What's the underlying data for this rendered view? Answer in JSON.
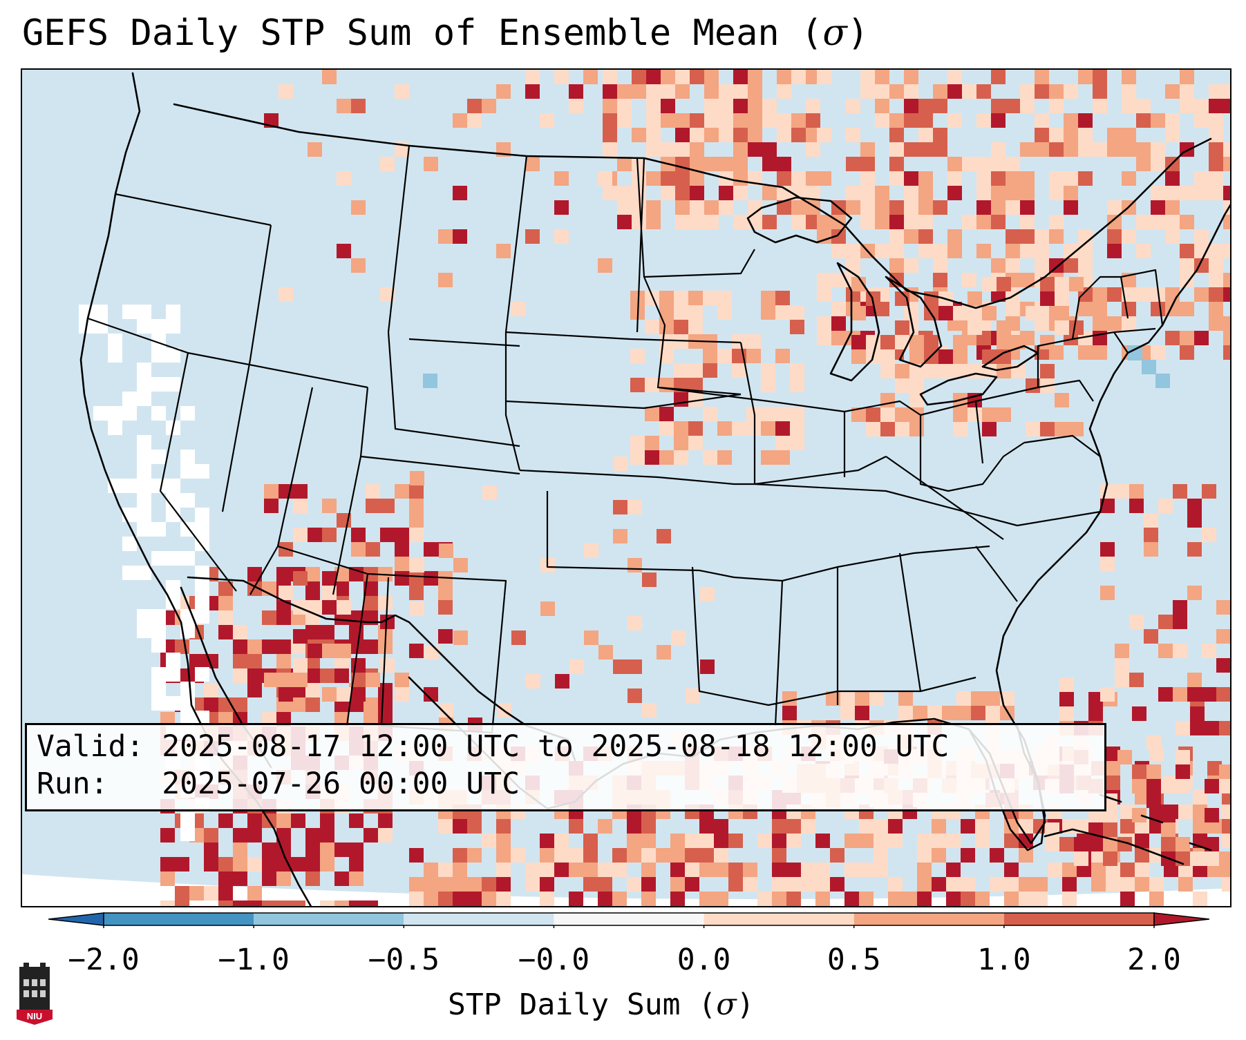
{
  "title": {
    "prefix": "GEFS Daily STP Sum of Ensemble Mean (",
    "symbol": "σ",
    "suffix": ")"
  },
  "info": {
    "valid_line": "Valid: 2025-08-17 12:00 UTC to 2025-08-18 12:00 UTC",
    "run_line": "Run:   2025-07-26 00:00 UTC"
  },
  "colorbar": {
    "ticks": [
      "−2.0",
      "−1.0",
      "−0.5",
      "−0.0",
      "0.0",
      "0.5",
      "1.0",
      "2.0"
    ],
    "label_prefix": "STP Daily Sum (",
    "label_symbol": "σ",
    "label_suffix": ")",
    "under_color": "#2166ac",
    "over_color": "#b2182b",
    "bin_colors": [
      "#4393c3",
      "#92c5de",
      "#d1e5f0",
      "#f7f7f7",
      "#fddbc7",
      "#f4a582",
      "#d6604d"
    ]
  },
  "map": {
    "background_color": "#d1e5f0",
    "outside_domain_color": "#ffffff"
  },
  "logo": {
    "text": "NIU"
  }
}
